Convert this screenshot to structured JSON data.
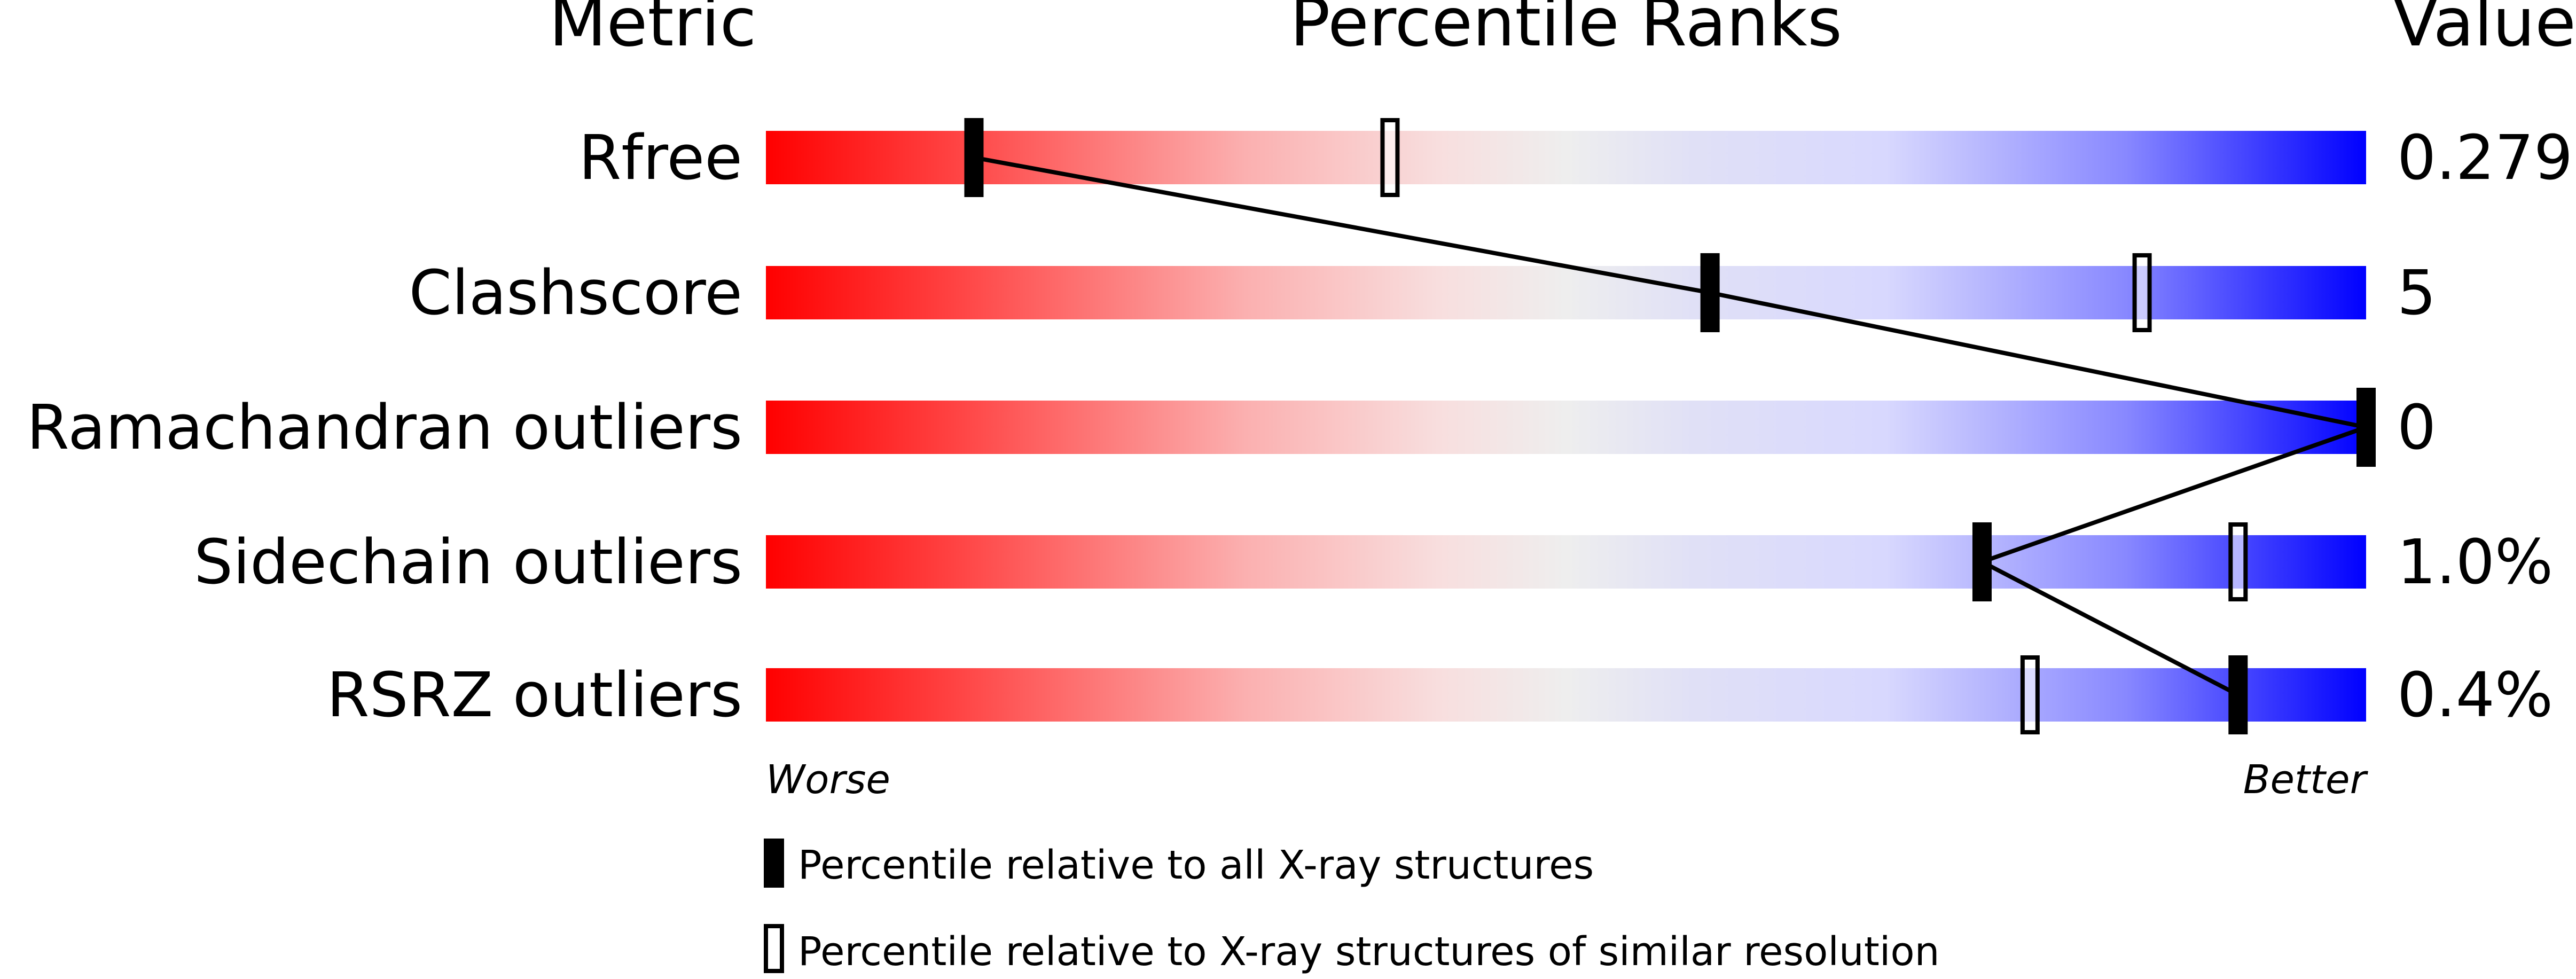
{
  "chart_data": {
    "type": "percentile-bar",
    "headers": {
      "metric": "Metric",
      "ranks": "Percentile Ranks",
      "value": "Value"
    },
    "axis": {
      "left_label": "Worse",
      "right_label": "Better",
      "range": [
        0,
        100
      ]
    },
    "gradient_colors": [
      "#ff0000",
      "#eeeeee",
      "#ddddff",
      "#0000ff"
    ],
    "rows": [
      {
        "metric": "Rfree",
        "value": "0.279",
        "percentile_all": 13,
        "percentile_similar": 39
      },
      {
        "metric": "Clashscore",
        "value": "5",
        "percentile_all": 59,
        "percentile_similar": 86
      },
      {
        "metric": "Ramachandran outliers",
        "value": "0",
        "percentile_all": 100,
        "percentile_similar": 100
      },
      {
        "metric": "Sidechain outliers",
        "value": "1.0%",
        "percentile_all": 76,
        "percentile_similar": 92
      },
      {
        "metric": "RSRZ outliers",
        "value": "0.4%",
        "percentile_all": 92,
        "percentile_similar": 79
      }
    ],
    "legend": {
      "filled": "Percentile relative to all X-ray structures",
      "hollow": "Percentile relative to X-ray structures of similar resolution"
    }
  }
}
